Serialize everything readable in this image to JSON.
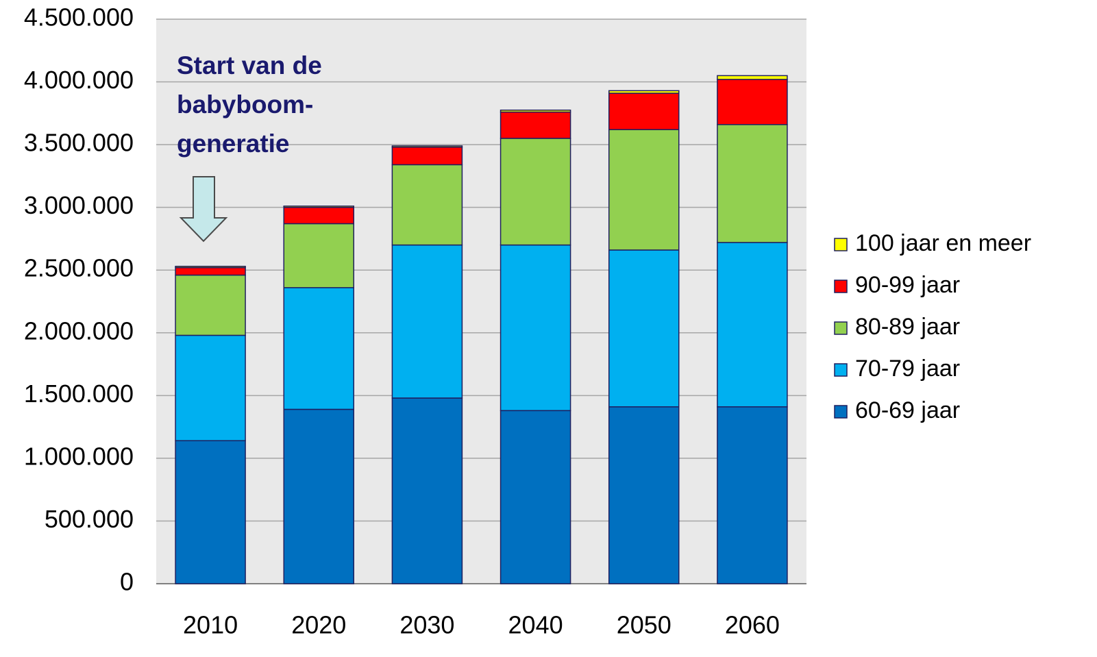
{
  "chart_data": {
    "type": "stacked_bar",
    "annotation": [
      "Start van de",
      "babyboom-",
      "generatie"
    ],
    "categories": [
      "2010",
      "2020",
      "2030",
      "2040",
      "2050",
      "2060"
    ],
    "series": [
      {
        "name": "60-69 jaar",
        "color": "#0070c0",
        "values": [
          1140000,
          1390000,
          1480000,
          1380000,
          1410000,
          1410000
        ]
      },
      {
        "name": "70-79 jaar",
        "color": "#00b0f0",
        "values": [
          840000,
          970000,
          1220000,
          1320000,
          1250000,
          1310000
        ]
      },
      {
        "name": "80-89 jaar",
        "color": "#92d050",
        "values": [
          480000,
          510000,
          640000,
          850000,
          960000,
          940000
        ]
      },
      {
        "name": "90-99 jaar",
        "color": "#ff0000",
        "values": [
          60000,
          130000,
          140000,
          210000,
          290000,
          360000
        ]
      },
      {
        "name": "100 jaar en meer",
        "color": "#ffff00",
        "values": [
          10000,
          10000,
          10000,
          15000,
          20000,
          30000
        ]
      }
    ],
    "ylim": [
      0,
      4500000
    ],
    "yticks": [
      0,
      {
        "value": 500000,
        "label": "500.000"
      },
      {
        "value": 1000000,
        "label": "1.000.000"
      },
      {
        "value": 1500000,
        "label": "1.500.000"
      },
      {
        "value": 2000000,
        "label": "2.000.000"
      },
      {
        "value": 2500000,
        "label": "2.500.000"
      },
      {
        "value": 3000000,
        "label": "3.000.000"
      },
      {
        "value": 3500000,
        "label": "3.500.000"
      },
      {
        "value": 4000000,
        "label": "4.000.000"
      },
      {
        "value": 4500000,
        "label": "4.500.000"
      }
    ],
    "grid": true,
    "legend": "right"
  }
}
